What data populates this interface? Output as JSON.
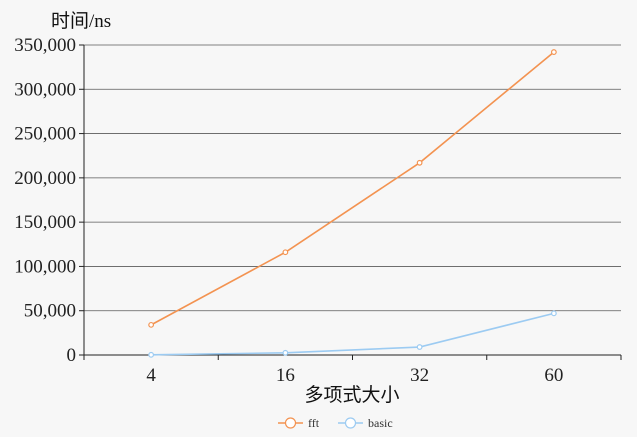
{
  "chart_data": {
    "type": "line",
    "title": "",
    "ylabel": "时间/ns",
    "xlabel": "多项式大小",
    "categories": [
      "4",
      "16",
      "32",
      "60"
    ],
    "yticks": [
      "0",
      "50,000",
      "100,000",
      "150,000",
      "200,000",
      "250,000",
      "300,000",
      "350,000"
    ],
    "ylim": [
      0,
      350000
    ],
    "grid": true,
    "legend_position": "bottom",
    "series": [
      {
        "name": "fft",
        "color": "#f39351",
        "values": [
          34000,
          116000,
          217000,
          342000
        ]
      },
      {
        "name": "basic",
        "color": "#9ccbf2",
        "values": [
          200,
          2500,
          9000,
          47000
        ]
      }
    ]
  }
}
